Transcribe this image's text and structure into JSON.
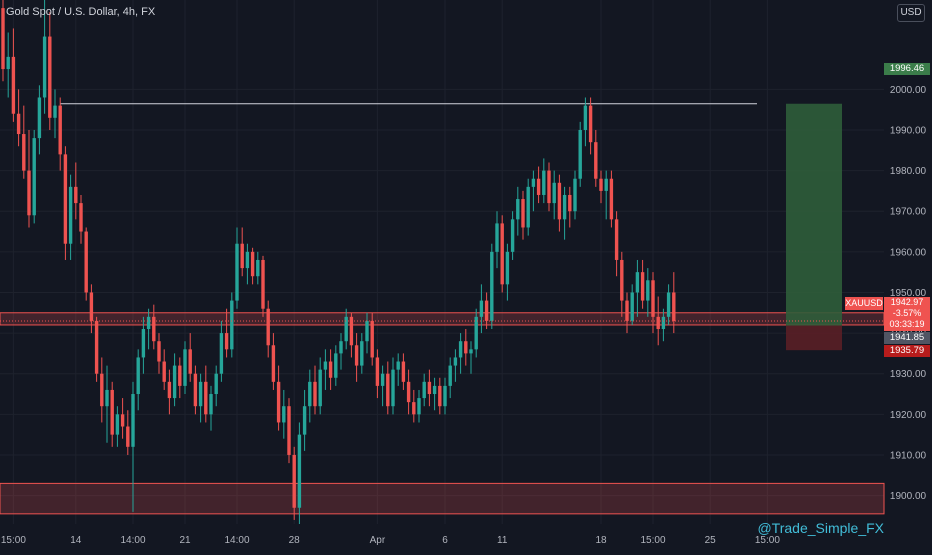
{
  "header": {
    "title": "Gold Spot / U.S. Dollar, 4h, FX"
  },
  "watermark": "@Trade_Simple_FX",
  "currency_button": "USD",
  "symbol_tag": "XAUUSD",
  "current_price": {
    "price": "1942.97",
    "change": "-3.57%",
    "countdown": "03:33:19"
  },
  "levels": {
    "target": {
      "label": "1996.46",
      "value": 1996.46
    },
    "entry": {
      "label": "1941.85",
      "value": 1941.85
    },
    "stop": {
      "label": "1935.79",
      "value": 1935.79
    }
  },
  "colors": {
    "background": "#131722",
    "up": "#26a69a",
    "down": "#ef5350",
    "target_zone": "#2f5d3a",
    "stop_zone": "#5a1f26",
    "grid": "#1e222d",
    "text": "#b2b5be"
  },
  "chart_data": {
    "type": "candlestick",
    "title": "Gold Spot / U.S. Dollar, 4h, FX",
    "ylim": [
      1893,
      2022
    ],
    "y_ticks": [
      1900,
      1910,
      1920,
      1930,
      1940,
      1950,
      1960,
      1970,
      1980,
      1990,
      2000
    ],
    "x_ticks": [
      {
        "i": 2,
        "label": "15:00"
      },
      {
        "i": 14,
        "label": "14"
      },
      {
        "i": 25,
        "label": "14:00"
      },
      {
        "i": 35,
        "label": "21"
      },
      {
        "i": 45,
        "label": "14:00"
      },
      {
        "i": 56,
        "label": "28"
      },
      {
        "i": 72,
        "label": "Apr"
      },
      {
        "i": 85,
        "label": "6"
      },
      {
        "i": 96,
        "label": "11"
      },
      {
        "i": 115,
        "label": "18"
      },
      {
        "i": 125,
        "label": "15:00"
      },
      {
        "i": 136,
        "label": "25"
      },
      {
        "i": 147,
        "label": "15:00"
      }
    ],
    "horizontal_lines": [
      1996.46
    ],
    "zones": [
      {
        "from": 1895.5,
        "to": 1903,
        "color": "#ef5350"
      },
      {
        "from": 1942,
        "to": 1945,
        "color": "#ef5350"
      }
    ],
    "position": {
      "target": 1996.46,
      "entry": 1941.85,
      "stop": 1935.79
    },
    "ohlc": [
      [
        2020,
        2024,
        2002,
        2005
      ],
      [
        2005,
        2014,
        1998,
        2008
      ],
      [
        2008,
        2015,
        1992,
        1994
      ],
      [
        1994,
        2000,
        1986,
        1989
      ],
      [
        1989,
        1996,
        1978,
        1980
      ],
      [
        1980,
        1990,
        1966,
        1969
      ],
      [
        1969,
        1990,
        1967,
        1988
      ],
      [
        1988,
        2001,
        1984,
        1998
      ],
      [
        1998,
        2022,
        1994,
        2013
      ],
      [
        2013,
        2019,
        1990,
        1993
      ],
      [
        1993,
        2000,
        1988,
        1996
      ],
      [
        1996,
        1998,
        1980,
        1984
      ],
      [
        1984,
        1986,
        1958,
        1962
      ],
      [
        1962,
        1979,
        1958,
        1976
      ],
      [
        1976,
        1982,
        1968,
        1972
      ],
      [
        1972,
        1974,
        1962,
        1965
      ],
      [
        1965,
        1966,
        1948,
        1950
      ],
      [
        1950,
        1952,
        1940,
        1943
      ],
      [
        1943,
        1944,
        1928,
        1930
      ],
      [
        1930,
        1934,
        1918,
        1922
      ],
      [
        1922,
        1932,
        1913,
        1926
      ],
      [
        1926,
        1928,
        1912,
        1915
      ],
      [
        1915,
        1922,
        1912,
        1920
      ],
      [
        1920,
        1924,
        1914,
        1917
      ],
      [
        1917,
        1921,
        1910,
        1912
      ],
      [
        1912,
        1928,
        1896,
        1925
      ],
      [
        1925,
        1936,
        1921,
        1934
      ],
      [
        1934,
        1944,
        1930,
        1941
      ],
      [
        1941,
        1946,
        1936,
        1944
      ],
      [
        1944,
        1947,
        1936,
        1938
      ],
      [
        1938,
        1940,
        1930,
        1933
      ],
      [
        1933,
        1936,
        1926,
        1928
      ],
      [
        1928,
        1931,
        1920,
        1924
      ],
      [
        1924,
        1935,
        1922,
        1932
      ],
      [
        1932,
        1934,
        1924,
        1927
      ],
      [
        1927,
        1938,
        1925,
        1936
      ],
      [
        1936,
        1940,
        1928,
        1930
      ],
      [
        1930,
        1932,
        1920,
        1922
      ],
      [
        1922,
        1930,
        1918,
        1928
      ],
      [
        1928,
        1932,
        1918,
        1920
      ],
      [
        1920,
        1927,
        1916,
        1925
      ],
      [
        1925,
        1932,
        1922,
        1930
      ],
      [
        1930,
        1943,
        1928,
        1940
      ],
      [
        1940,
        1946,
        1934,
        1936
      ],
      [
        1936,
        1950,
        1934,
        1948
      ],
      [
        1948,
        1966,
        1946,
        1962
      ],
      [
        1962,
        1966,
        1954,
        1956
      ],
      [
        1956,
        1962,
        1952,
        1960
      ],
      [
        1960,
        1961,
        1952,
        1954
      ],
      [
        1954,
        1960,
        1952,
        1958
      ],
      [
        1958,
        1959,
        1944,
        1946
      ],
      [
        1946,
        1948,
        1934,
        1937
      ],
      [
        1937,
        1940,
        1926,
        1928
      ],
      [
        1928,
        1932,
        1916,
        1918
      ],
      [
        1918,
        1926,
        1914,
        1922
      ],
      [
        1922,
        1924,
        1908,
        1910
      ],
      [
        1910,
        1912,
        1894,
        1897
      ],
      [
        1897,
        1918,
        1893,
        1915
      ],
      [
        1915,
        1926,
        1911,
        1922
      ],
      [
        1922,
        1931,
        1918,
        1928
      ],
      [
        1928,
        1932,
        1920,
        1922
      ],
      [
        1922,
        1934,
        1920,
        1931
      ],
      [
        1931,
        1936,
        1926,
        1933
      ],
      [
        1933,
        1936,
        1926,
        1929
      ],
      [
        1929,
        1937,
        1927,
        1935
      ],
      [
        1935,
        1940,
        1931,
        1938
      ],
      [
        1938,
        1946,
        1936,
        1944
      ],
      [
        1944,
        1945,
        1934,
        1937
      ],
      [
        1937,
        1940,
        1928,
        1932
      ],
      [
        1932,
        1940,
        1930,
        1938
      ],
      [
        1938,
        1945,
        1935,
        1943
      ],
      [
        1943,
        1945,
        1932,
        1934
      ],
      [
        1934,
        1936,
        1924,
        1927
      ],
      [
        1927,
        1932,
        1922,
        1930
      ],
      [
        1930,
        1933,
        1920,
        1922
      ],
      [
        1922,
        1934,
        1920,
        1931
      ],
      [
        1931,
        1935,
        1927,
        1933
      ],
      [
        1933,
        1935,
        1926,
        1928
      ],
      [
        1928,
        1931,
        1920,
        1923
      ],
      [
        1923,
        1926,
        1918,
        1920
      ],
      [
        1920,
        1926,
        1918,
        1924
      ],
      [
        1924,
        1930,
        1922,
        1928
      ],
      [
        1928,
        1931,
        1922,
        1925
      ],
      [
        1925,
        1929,
        1921,
        1927
      ],
      [
        1927,
        1929,
        1920,
        1922
      ],
      [
        1922,
        1929,
        1920,
        1927
      ],
      [
        1927,
        1934,
        1924,
        1932
      ],
      [
        1932,
        1936,
        1928,
        1934
      ],
      [
        1934,
        1940,
        1930,
        1938
      ],
      [
        1938,
        1941,
        1932,
        1935
      ],
      [
        1935,
        1938,
        1930,
        1936
      ],
      [
        1936,
        1946,
        1934,
        1944
      ],
      [
        1944,
        1952,
        1940,
        1948
      ],
      [
        1948,
        1950,
        1941,
        1943
      ],
      [
        1943,
        1962,
        1941,
        1960
      ],
      [
        1960,
        1970,
        1956,
        1967
      ],
      [
        1967,
        1969,
        1950,
        1952
      ],
      [
        1952,
        1962,
        1948,
        1960
      ],
      [
        1960,
        1970,
        1958,
        1968
      ],
      [
        1968,
        1976,
        1964,
        1973
      ],
      [
        1973,
        1975,
        1963,
        1966
      ],
      [
        1966,
        1978,
        1964,
        1976
      ],
      [
        1976,
        1980,
        1970,
        1978
      ],
      [
        1978,
        1981,
        1972,
        1974
      ],
      [
        1974,
        1983,
        1972,
        1980
      ],
      [
        1980,
        1982,
        1970,
        1972
      ],
      [
        1972,
        1980,
        1968,
        1977
      ],
      [
        1977,
        1979,
        1965,
        1968
      ],
      [
        1968,
        1976,
        1963,
        1974
      ],
      [
        1974,
        1976,
        1966,
        1970
      ],
      [
        1970,
        1980,
        1968,
        1978
      ],
      [
        1978,
        1992,
        1976,
        1990
      ],
      [
        1990,
        1998,
        1986,
        1996
      ],
      [
        1996,
        1998,
        1984,
        1987
      ],
      [
        1987,
        1990,
        1976,
        1978
      ],
      [
        1978,
        1980,
        1972,
        1975
      ],
      [
        1975,
        1980,
        1968,
        1978
      ],
      [
        1978,
        1980,
        1966,
        1968
      ],
      [
        1968,
        1970,
        1954,
        1958
      ],
      [
        1958,
        1960,
        1944,
        1948
      ],
      [
        1948,
        1950,
        1940,
        1943
      ],
      [
        1943,
        1952,
        1942,
        1950
      ],
      [
        1950,
        1958,
        1944,
        1955
      ],
      [
        1955,
        1958,
        1946,
        1948
      ],
      [
        1948,
        1956,
        1944,
        1953
      ],
      [
        1953,
        1955,
        1940,
        1944
      ],
      [
        1944,
        1949,
        1937,
        1941
      ],
      [
        1941,
        1946,
        1938,
        1944
      ],
      [
        1944,
        1952,
        1942,
        1950
      ],
      [
        1950,
        1955,
        1940,
        1942.97
      ]
    ]
  }
}
